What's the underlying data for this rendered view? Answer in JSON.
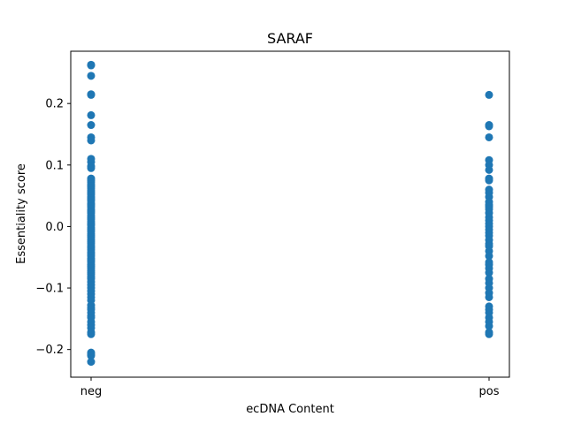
{
  "chart_data": {
    "type": "scatter",
    "title": "SARAF",
    "xlabel": "ecDNA Content",
    "ylabel": "Essentiality score",
    "categories": [
      "neg",
      "pos"
    ],
    "ylim": [
      -0.245,
      0.285
    ],
    "yticks": [
      -0.2,
      -0.1,
      0.0,
      0.1,
      0.2
    ],
    "ytick_labels": [
      "−0.2",
      "−0.1",
      "0.0",
      "0.1",
      "0.2"
    ],
    "grid": false,
    "color": "#1f77b4",
    "series": [
      {
        "category": "neg",
        "values": [
          0.263,
          0.262,
          0.245,
          0.215,
          0.214,
          0.181,
          0.165,
          0.145,
          0.14,
          0.11,
          0.105,
          0.098,
          0.095,
          0.078,
          0.075,
          0.072,
          0.068,
          0.065,
          0.062,
          0.058,
          0.055,
          0.052,
          0.048,
          0.045,
          0.042,
          0.038,
          0.035,
          0.032,
          0.028,
          0.025,
          0.022,
          0.018,
          0.015,
          0.012,
          0.008,
          0.005,
          0.002,
          -0.002,
          -0.005,
          -0.008,
          -0.012,
          -0.015,
          -0.018,
          -0.022,
          -0.025,
          -0.028,
          -0.032,
          -0.035,
          -0.038,
          -0.042,
          -0.045,
          -0.048,
          -0.052,
          -0.055,
          -0.058,
          -0.062,
          -0.065,
          -0.068,
          -0.072,
          -0.075,
          -0.078,
          -0.082,
          -0.085,
          -0.09,
          -0.095,
          -0.1,
          -0.105,
          -0.11,
          -0.115,
          -0.12,
          -0.128,
          -0.132,
          -0.135,
          -0.14,
          -0.145,
          -0.148,
          -0.155,
          -0.16,
          -0.165,
          -0.172,
          -0.175,
          -0.205,
          -0.208,
          -0.21,
          -0.22
        ]
      },
      {
        "category": "pos",
        "values": [
          0.214,
          0.165,
          0.163,
          0.145,
          0.108,
          0.1,
          0.092,
          0.078,
          0.075,
          0.06,
          0.055,
          0.048,
          0.04,
          0.035,
          0.032,
          0.028,
          0.022,
          0.015,
          0.01,
          0.005,
          0.0,
          -0.005,
          -0.01,
          -0.015,
          -0.022,
          -0.028,
          -0.032,
          -0.04,
          -0.048,
          -0.058,
          -0.062,
          -0.068,
          -0.075,
          -0.085,
          -0.092,
          -0.1,
          -0.108,
          -0.115,
          -0.13,
          -0.135,
          -0.14,
          -0.148,
          -0.155,
          -0.162,
          -0.172,
          -0.175
        ]
      }
    ]
  }
}
